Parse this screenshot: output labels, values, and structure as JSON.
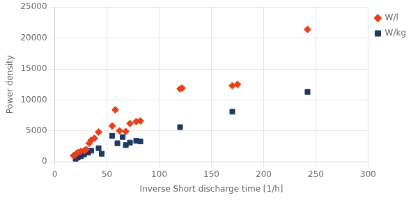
{
  "chart_data": {
    "type": "scatter",
    "xlabel": "Inverse Short discharge time [1/h]",
    "ylabel": "Power density",
    "series": [
      {
        "name": "W/l",
        "color": "#E8401C",
        "marker": "diamond",
        "x": [
          18,
          20,
          22,
          25,
          28,
          30,
          33,
          35,
          38,
          42,
          55,
          58,
          62,
          68,
          72,
          78,
          82,
          120,
          122,
          170,
          175,
          242
        ],
        "values": [
          1000,
          1200,
          1500,
          1700,
          1800,
          2000,
          3000,
          3500,
          3800,
          4800,
          5800,
          8400,
          5000,
          4900,
          6200,
          6500,
          6600,
          11800,
          11900,
          12300,
          12500,
          21400
        ]
      },
      {
        "name": "W/kg",
        "color": "#1F3864",
        "marker": "square",
        "x": [
          20,
          22,
          25,
          28,
          32,
          35,
          42,
          45,
          55,
          60,
          65,
          68,
          72,
          78,
          82,
          120,
          170,
          242
        ],
        "values": [
          500,
          700,
          900,
          1200,
          1500,
          1800,
          2200,
          1300,
          4200,
          3000,
          4000,
          2700,
          3100,
          3400,
          3300,
          5600,
          8100,
          11300
        ]
      }
    ],
    "xlim": [
      0,
      300
    ],
    "ylim": [
      0,
      25000
    ],
    "xticks": [
      0,
      50,
      100,
      150,
      200,
      250,
      300
    ],
    "yticks": [
      0,
      5000,
      10000,
      15000,
      20000,
      25000
    ],
    "grid": true,
    "legend": "right"
  }
}
